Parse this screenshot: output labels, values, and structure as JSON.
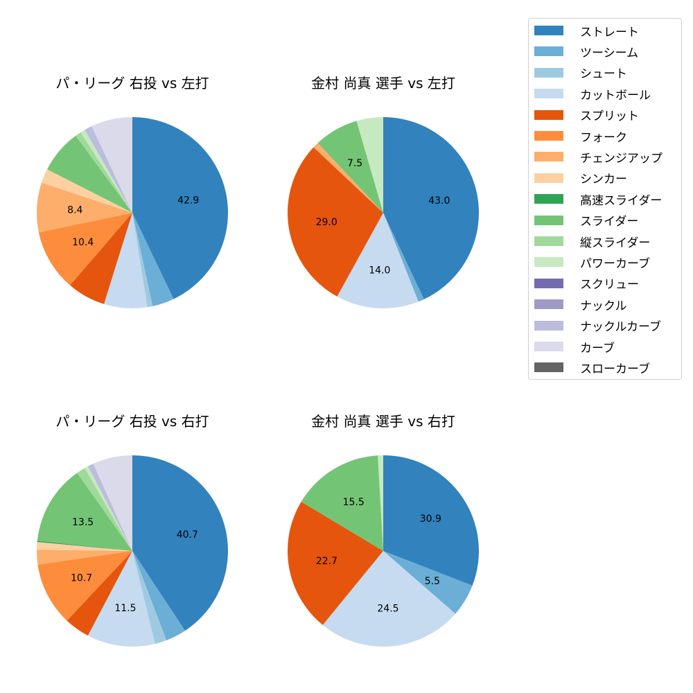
{
  "chart_data": [
    {
      "type": "pie",
      "title": "パ・リーグ 右投 vs 左打",
      "start_angle": 90,
      "direction": "clockwise",
      "categories": [
        "ストレート",
        "ツーシーム",
        "シュート",
        "カットボール",
        "スプリット",
        "フォーク",
        "チェンジアップ",
        "シンカー",
        "スライダー",
        "縦スライダー",
        "パワーカーブ",
        "ナックルカーブ",
        "カーブ"
      ],
      "values": [
        42.9,
        3.7,
        0.9,
        7.3,
        6.5,
        10.4,
        8.4,
        2.4,
        7.4,
        1.0,
        0.8,
        1.3,
        7.0
      ],
      "labels_shown": [
        "42.9",
        "",
        "",
        "",
        "",
        "10.4",
        "8.4",
        "",
        "",
        "",
        "",
        "",
        ""
      ]
    },
    {
      "type": "pie",
      "title": "金村 尚真 選手 vs 左打",
      "start_angle": 90,
      "direction": "clockwise",
      "categories": [
        "ストレート",
        "ツーシーム",
        "カットボール",
        "スプリット",
        "チェンジアップ",
        "スライダー",
        "パワーカーブ"
      ],
      "values": [
        43.0,
        1.0,
        14.0,
        29.0,
        1.0,
        7.5,
        4.5
      ],
      "labels_shown": [
        "43.0",
        "",
        "14.0",
        "29.0",
        "",
        "7.5",
        ""
      ]
    },
    {
      "type": "pie",
      "title": "パ・リーグ 右投 vs 右打",
      "start_angle": 90,
      "direction": "clockwise",
      "categories": [
        "ストレート",
        "ツーシーム",
        "シュート",
        "カットボール",
        "スプリット",
        "フォーク",
        "チェンジアップ",
        "シンカー",
        "高速スライダー",
        "スライダー",
        "縦スライダー",
        "パワーカーブ",
        "ナックルカーブ",
        "カーブ"
      ],
      "values": [
        40.7,
        3.5,
        2.0,
        11.5,
        4.3,
        10.7,
        2.5,
        1.3,
        0.2,
        13.5,
        1.5,
        0.6,
        1.0,
        6.7
      ],
      "labels_shown": [
        "40.7",
        "",
        "",
        "11.5",
        "",
        "10.7",
        "",
        "",
        "",
        "13.5",
        "",
        "",
        "",
        ""
      ]
    },
    {
      "type": "pie",
      "title": "金村 尚真 選手 vs 右打",
      "start_angle": 90,
      "direction": "clockwise",
      "categories": [
        "ストレート",
        "ツーシーム",
        "カットボール",
        "スプリット",
        "スライダー",
        "パワーカーブ"
      ],
      "values": [
        30.9,
        5.5,
        24.5,
        22.7,
        15.5,
        0.9
      ],
      "labels_shown": [
        "30.9",
        "5.5",
        "24.5",
        "22.7",
        "15.5",
        ""
      ]
    }
  ],
  "legend": {
    "position": "upper right",
    "items": [
      {
        "label": "ストレート",
        "color": "#3182bd"
      },
      {
        "label": "ツーシーム",
        "color": "#6baed6"
      },
      {
        "label": "シュート",
        "color": "#9ecae1"
      },
      {
        "label": "カットボール",
        "color": "#c6dbef"
      },
      {
        "label": "スプリット",
        "color": "#e6550d"
      },
      {
        "label": "フォーク",
        "color": "#fd8d3c"
      },
      {
        "label": "チェンジアップ",
        "color": "#fdae6b"
      },
      {
        "label": "シンカー",
        "color": "#fdd0a2"
      },
      {
        "label": "高速スライダー",
        "color": "#31a354"
      },
      {
        "label": "スライダー",
        "color": "#74c476"
      },
      {
        "label": "縦スライダー",
        "color": "#a1d99b"
      },
      {
        "label": "パワーカーブ",
        "color": "#c7e9c0"
      },
      {
        "label": "スクリュー",
        "color": "#756bb1"
      },
      {
        "label": "ナックル",
        "color": "#9e9ac8"
      },
      {
        "label": "ナックルカーブ",
        "color": "#bcbddc"
      },
      {
        "label": "カーブ",
        "color": "#dadaeb"
      },
      {
        "label": "スローカーブ",
        "color": "#636363"
      }
    ]
  },
  "titles": {
    "tl": "パ・リーグ 右投 vs 左打",
    "tr": "金村 尚真 選手 vs 左打",
    "bl": "パ・リーグ 右投 vs 右打",
    "br": "金村 尚真 選手 vs 右打"
  }
}
